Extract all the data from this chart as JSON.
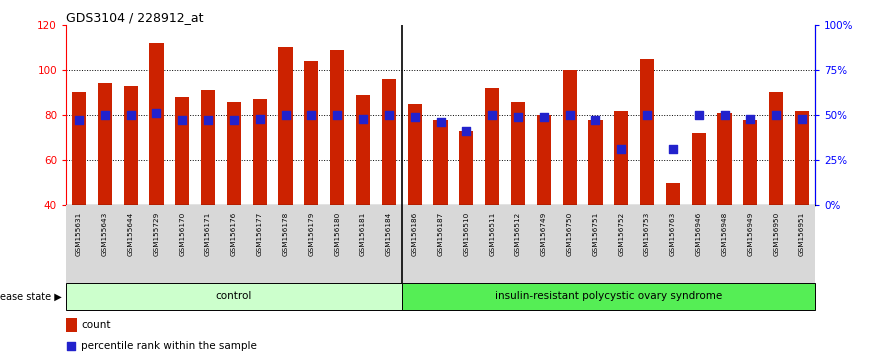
{
  "title": "GDS3104 / 228912_at",
  "samples": [
    "GSM155631",
    "GSM155643",
    "GSM155644",
    "GSM155729",
    "GSM156170",
    "GSM156171",
    "GSM156176",
    "GSM156177",
    "GSM156178",
    "GSM156179",
    "GSM156180",
    "GSM156181",
    "GSM156184",
    "GSM156186",
    "GSM156187",
    "GSM156510",
    "GSM156511",
    "GSM156512",
    "GSM156749",
    "GSM156750",
    "GSM156751",
    "GSM156752",
    "GSM156753",
    "GSM156763",
    "GSM156946",
    "GSM156948",
    "GSM156949",
    "GSM156950",
    "GSM156951"
  ],
  "counts": [
    90,
    94,
    93,
    112,
    88,
    91,
    86,
    87,
    110,
    104,
    109,
    89,
    96,
    85,
    78,
    73,
    92,
    86,
    80,
    100,
    78,
    82,
    105,
    50,
    72,
    81,
    78,
    90,
    82
  ],
  "percentile_ranks": [
    47,
    50,
    50,
    51,
    47,
    47,
    47,
    48,
    50,
    50,
    50,
    48,
    50,
    49,
    46,
    41,
    50,
    49,
    49,
    50,
    47,
    31,
    50,
    31,
    50,
    50,
    48,
    50,
    48
  ],
  "control_count": 13,
  "bar_color": "#cc2200",
  "dot_color": "#2222cc",
  "ylim_left": [
    40,
    120
  ],
  "ylim_right": [
    0,
    100
  ],
  "yticks_left": [
    40,
    60,
    80,
    100,
    120
  ],
  "yticks_right": [
    0,
    25,
    50,
    75,
    100
  ],
  "ytick_labels_right": [
    "0%",
    "25%",
    "50%",
    "75%",
    "100%"
  ],
  "control_label": "control",
  "disease_label": "insulin-resistant polycystic ovary syndrome",
  "disease_state_label": "disease state",
  "legend_count": "count",
  "legend_percentile": "percentile rank within the sample",
  "control_color": "#ccffcc",
  "disease_color": "#55ee55",
  "bar_width": 0.55,
  "grid_lines": [
    60,
    80,
    100
  ],
  "dot_size": 35,
  "xtick_bg": "#d8d8d8"
}
